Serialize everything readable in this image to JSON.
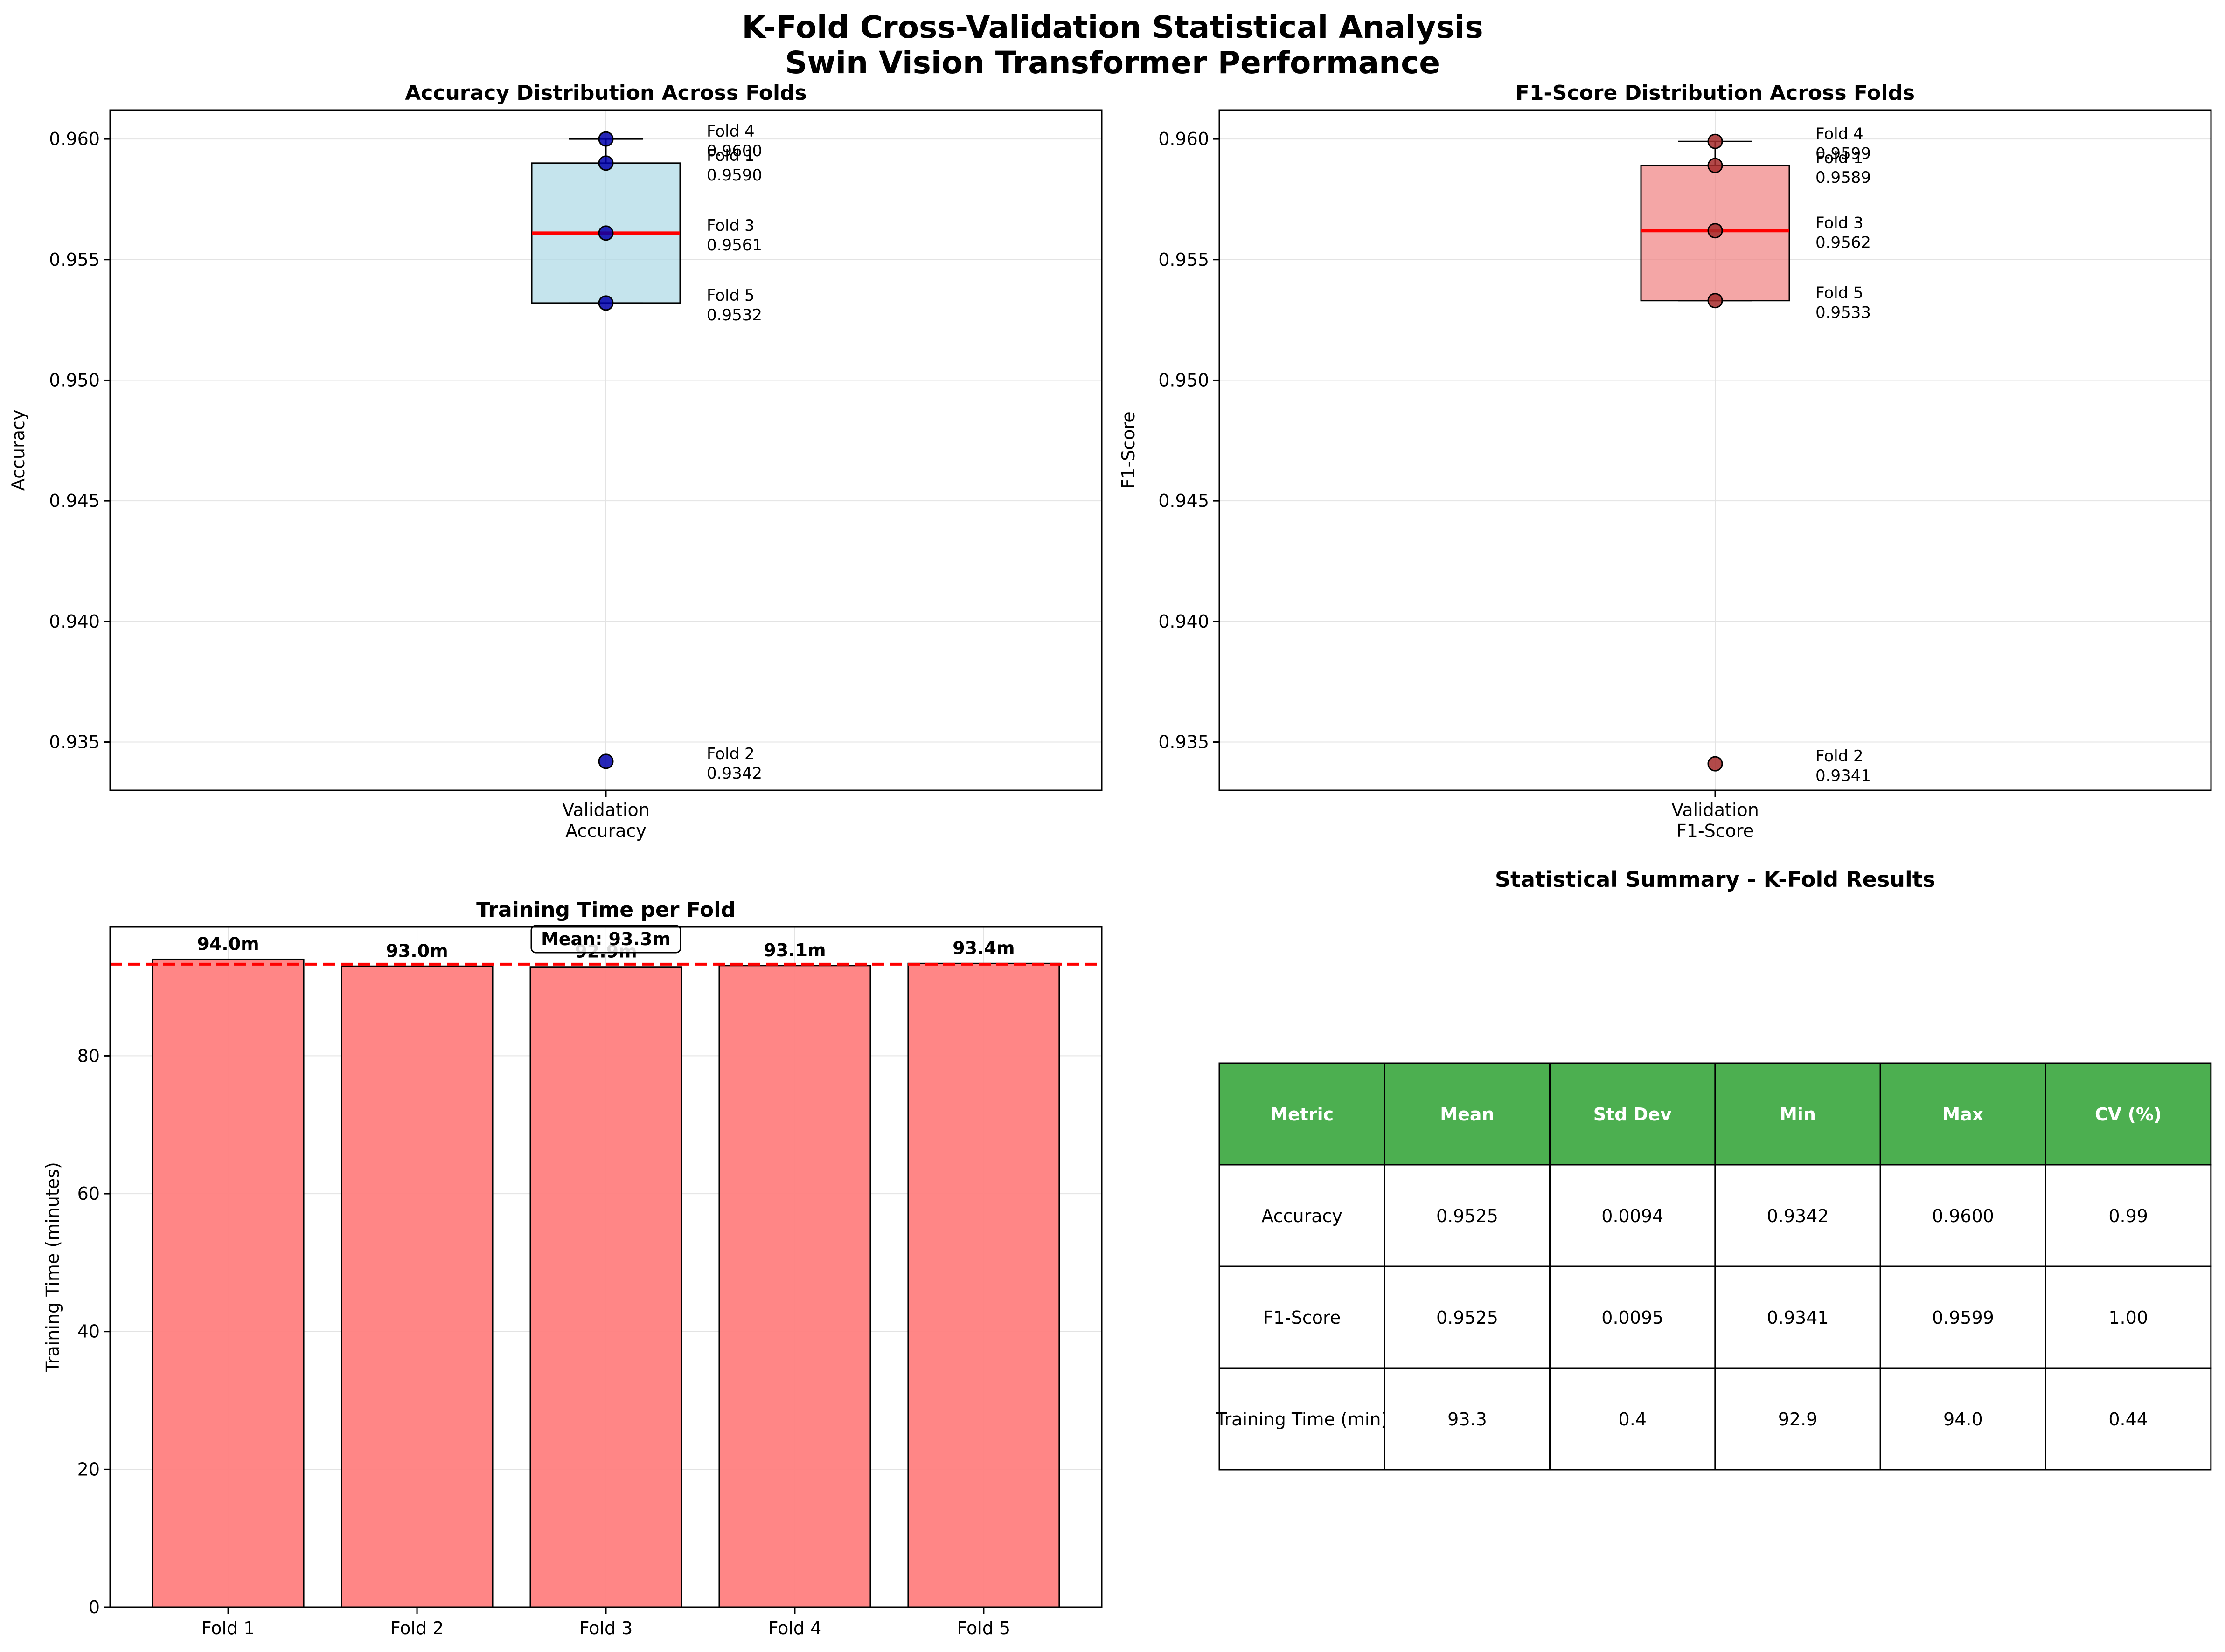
{
  "figure": {
    "title_line1": "K-Fold Cross-Validation Statistical Analysis",
    "title_line2": "Swin Vision Transformer Performance"
  },
  "colors": {
    "accuracy_box": "#add8e6",
    "accuracy_point": "#0000aa",
    "f1_box": "#f08080",
    "f1_point": "#a52a2a",
    "median_line": "#ff0000",
    "bar_fill": "#ff8080",
    "mean_line": "#ff0000",
    "table_header": "#4caf50"
  },
  "chart_data": [
    {
      "type": "box",
      "title": "Accuracy Distribution Across Folds",
      "ylabel": "Accuracy",
      "xlabel": "",
      "category": [
        "Validation",
        "Accuracy"
      ],
      "ylim": [
        0.933,
        0.9612
      ],
      "yticks": [
        "0.935",
        "0.940",
        "0.945",
        "0.950",
        "0.955",
        "0.960"
      ],
      "grid": true,
      "box": {
        "q1": 0.9532,
        "median": 0.9561,
        "q3": 0.959,
        "whisker_low": 0.9532,
        "whisker_high": 0.96
      },
      "points": [
        {
          "fold": "Fold 1",
          "value": 0.959,
          "label": "0.9590"
        },
        {
          "fold": "Fold 2",
          "value": 0.9342,
          "label": "0.9342"
        },
        {
          "fold": "Fold 3",
          "value": 0.9561,
          "label": "0.9561"
        },
        {
          "fold": "Fold 4",
          "value": 0.96,
          "label": "0.9600"
        },
        {
          "fold": "Fold 5",
          "value": 0.9532,
          "label": "0.9532"
        }
      ]
    },
    {
      "type": "box",
      "title": "F1-Score Distribution Across Folds",
      "ylabel": "F1-Score",
      "xlabel": "",
      "category": [
        "Validation",
        "F1-Score"
      ],
      "ylim": [
        0.933,
        0.9612
      ],
      "yticks": [
        "0.935",
        "0.940",
        "0.945",
        "0.950",
        "0.955",
        "0.960"
      ],
      "grid": true,
      "box": {
        "q1": 0.9533,
        "median": 0.9562,
        "q3": 0.9589,
        "whisker_low": 0.9533,
        "whisker_high": 0.9599
      },
      "points": [
        {
          "fold": "Fold 1",
          "value": 0.9589,
          "label": "0.9589"
        },
        {
          "fold": "Fold 2",
          "value": 0.9341,
          "label": "0.9341"
        },
        {
          "fold": "Fold 3",
          "value": 0.9562,
          "label": "0.9562"
        },
        {
          "fold": "Fold 4",
          "value": 0.9599,
          "label": "0.9599"
        },
        {
          "fold": "Fold 5",
          "value": 0.9533,
          "label": "0.9533"
        }
      ]
    },
    {
      "type": "bar",
      "title": "Training Time per Fold",
      "ylabel": "Training Time (minutes)",
      "xlabel": "",
      "categories": [
        "Fold 1",
        "Fold 2",
        "Fold 3",
        "Fold 4",
        "Fold 5"
      ],
      "values": [
        94.0,
        93.0,
        92.9,
        93.1,
        93.4
      ],
      "value_labels": [
        "94.0m",
        "93.0m",
        "92.9m",
        "93.1m",
        "93.4m"
      ],
      "ylim": [
        0,
        98.7
      ],
      "yticks": [
        0,
        20,
        40,
        60,
        80
      ],
      "grid": true,
      "mean": 93.3,
      "mean_label": "Mean: 93.3m"
    },
    {
      "type": "table",
      "title": "Statistical Summary - K-Fold Results",
      "columns": [
        "Metric",
        "Mean",
        "Std Dev",
        "Min",
        "Max",
        "CV (%)"
      ],
      "rows": [
        [
          "Accuracy",
          "0.9525",
          "0.0094",
          "0.9342",
          "0.9600",
          "0.99"
        ],
        [
          "F1-Score",
          "0.9525",
          "0.0095",
          "0.9341",
          "0.9599",
          "1.00"
        ],
        [
          "Training Time (min)",
          "93.3",
          "0.4",
          "92.9",
          "94.0",
          "0.44"
        ]
      ]
    }
  ]
}
